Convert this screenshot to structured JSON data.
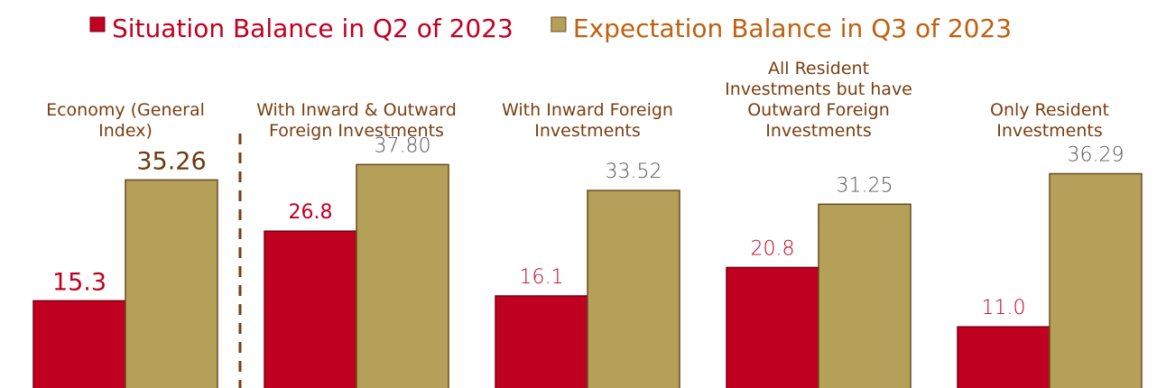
{
  "chart_data": {
    "type": "bar",
    "categories": [
      "Economy (General Index)",
      "With Inward & Outward Foreign Investments",
      "With Inward Foreign Investments",
      "All Resident Investments but have Outward Foreign Investments",
      "Only Resident Investments"
    ],
    "series": [
      {
        "name": "Situation Balance in Q2 of 2023",
        "color": "#c00020",
        "values": [
          15.3,
          26.8,
          16.1,
          20.8,
          11.0
        ],
        "value_labels": [
          "15.3",
          "26.8",
          "16.1",
          "20.8",
          "11.0"
        ]
      },
      {
        "name": "Expectation Balance in Q3 of 2023",
        "color": "#b5a05a",
        "values": [
          35.26,
          37.8,
          33.52,
          31.25,
          36.29
        ],
        "value_labels": [
          "35.26",
          "37.80",
          "33.52",
          "31.25",
          "36.29"
        ]
      }
    ]
  }
}
